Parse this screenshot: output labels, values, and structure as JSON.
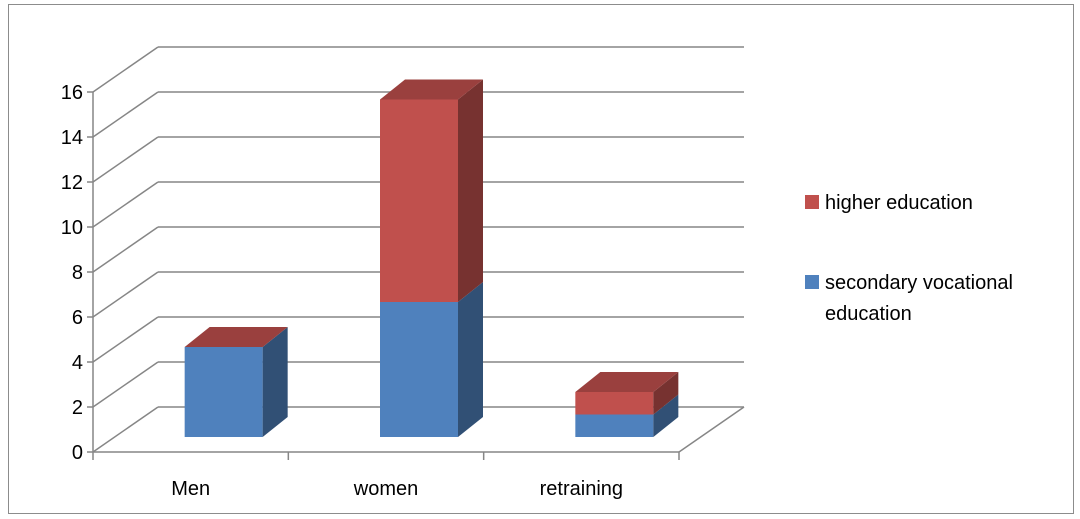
{
  "chart_data": {
    "type": "bar",
    "stacked": true,
    "three_d": true,
    "categories": [
      "Men",
      "women",
      "retraining"
    ],
    "series": [
      {
        "name": "secondary vocational education",
        "values": [
          4,
          6,
          1
        ],
        "color": "#4F81BD"
      },
      {
        "name": "higher education",
        "values": [
          0,
          9,
          1
        ],
        "color": "#C0504D"
      }
    ],
    "ylim": [
      0,
      16
    ],
    "yticks": [
      "0",
      "2",
      "4",
      "6",
      "8",
      "10",
      "12",
      "14",
      "16"
    ],
    "grid": true,
    "legend_position": "right"
  },
  "legend": {
    "items": [
      {
        "label": "higher education",
        "color": "#C0504D"
      },
      {
        "label": "secondary vocational education",
        "color": "#4F81BD"
      }
    ]
  }
}
